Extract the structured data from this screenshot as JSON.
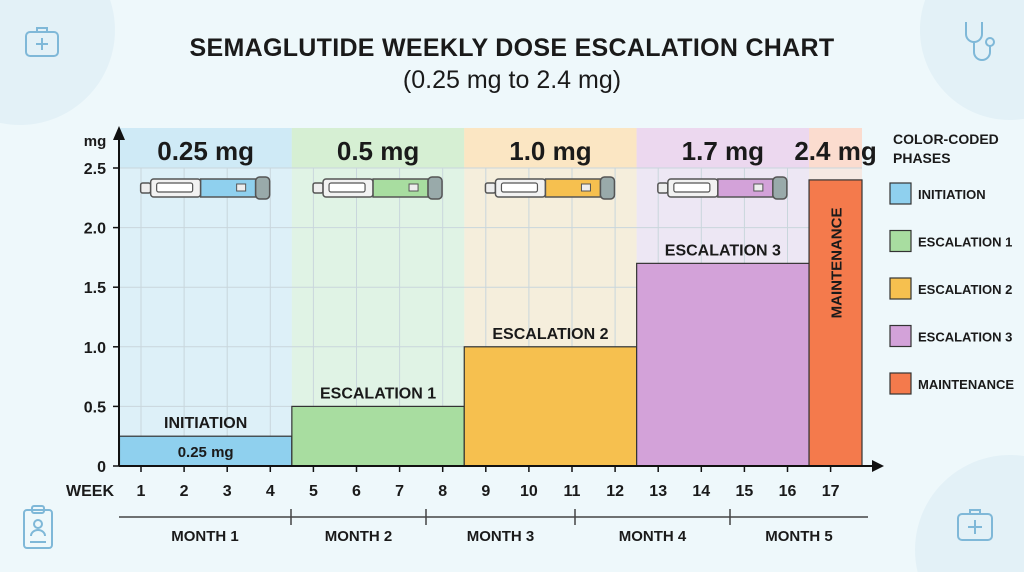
{
  "title": "SEMAGLUTIDE WEEKLY DOSE ESCALATION CHART",
  "subtitle": "(0.25 mg to 2.4 mg)",
  "chart_data": {
    "type": "bar",
    "ylabel": "mg",
    "xlabel": "WEEK",
    "ylim": [
      0,
      2.5
    ],
    "yticks": [
      "0",
      "0.5",
      "1.0",
      "1.5",
      "2.0",
      "2.5"
    ],
    "ytick_values": [
      0,
      0.5,
      1.0,
      1.5,
      2.0,
      2.5
    ],
    "weeks": [
      "1",
      "2",
      "3",
      "4",
      "5",
      "6",
      "7",
      "8",
      "9",
      "10",
      "11",
      "12",
      "13",
      "14",
      "15",
      "16",
      "17"
    ],
    "grid": true,
    "phases": [
      {
        "name": "INITIATION",
        "dose": 0.25,
        "dose_label": "0.25 mg",
        "bar_label": "0.25 mg",
        "weeks": [
          1,
          4
        ],
        "color": "#8fd0ee",
        "header_color": "#cfeaf6"
      },
      {
        "name": "ESCALATION 1",
        "dose": 0.5,
        "dose_label": "0.5 mg",
        "weeks": [
          5,
          8
        ],
        "color": "#a8dda0",
        "header_color": "#d6efd3"
      },
      {
        "name": "ESCALATION 2",
        "dose": 1.0,
        "dose_label": "1.0 mg",
        "weeks": [
          9,
          12
        ],
        "color": "#f6c04f",
        "header_color": "#fbe6c3"
      },
      {
        "name": "ESCALATION 3",
        "dose": 1.7,
        "dose_label": "1.7 mg",
        "weeks": [
          13,
          16
        ],
        "color": "#d3a2d9",
        "header_color": "#ecd8ef"
      },
      {
        "name": "MAINTENANCE",
        "dose": 2.4,
        "dose_label": "2.4 mg",
        "weeks": [
          17,
          17
        ],
        "color": "#f47a4c",
        "header_color": "#fbdccf"
      }
    ],
    "months": [
      "MONTH 1",
      "MONTH 2",
      "MONTH 3",
      "MONTH 4",
      "MONTH 5"
    ],
    "legend": {
      "title_line1": "COLOR-CODED",
      "title_line2": "PHASES",
      "placement": "right",
      "entries": [
        "INITIATION",
        "ESCALATION 1",
        "ESCALATION 2",
        "ESCALATION 3",
        "MAINTENANCE"
      ]
    }
  },
  "decor_icons": [
    "medical-kit-icon",
    "stethoscope-icon",
    "clipboard-icon",
    "medical-kit-icon"
  ]
}
